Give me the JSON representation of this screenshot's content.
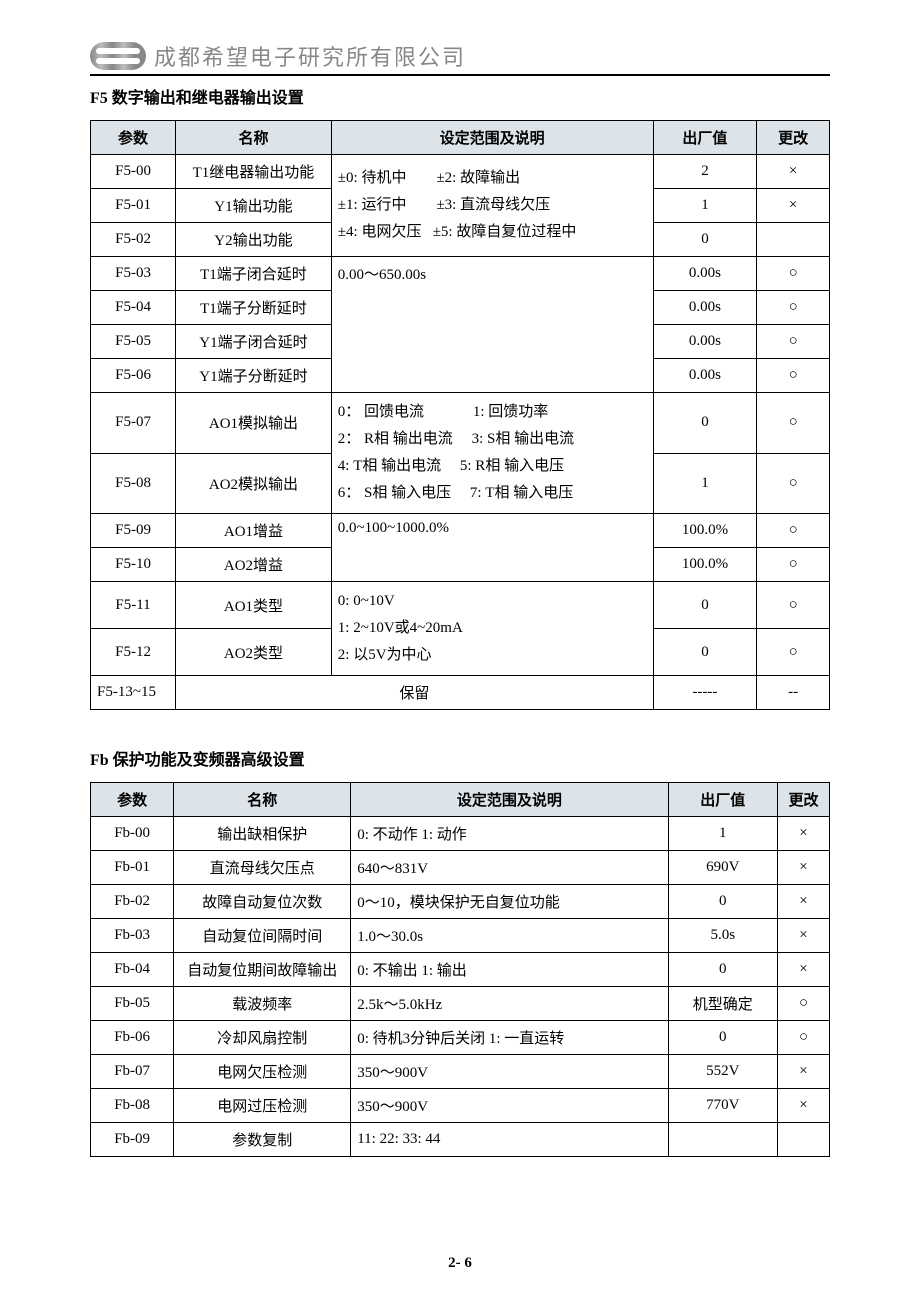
{
  "header": {
    "company": "成都希望电子研究所有限公司"
  },
  "sectionF5": {
    "title": "F5  数字输出和继电器输出设置",
    "headers": {
      "param": "参数",
      "name": "名称",
      "range": "设定范围及说明",
      "default": "出厂值",
      "change": "更改"
    },
    "spanDesc1_line1a": "±0: 待机中",
    "spanDesc1_line1b": "±2: 故障输出",
    "spanDesc1_line2a": "±1: 运行中",
    "spanDesc1_line2b": "±3: 直流母线欠压",
    "spanDesc1_line3a": "±4: 电网欠压",
    "spanDesc1_line3b": "±5: 故障自复位过程中",
    "spanDesc2": "0.00～650.00s",
    "spanDesc3_line1a": "0：   回馈电流",
    "spanDesc3_line1b": "1:   回馈功率",
    "spanDesc3_line2a": "2：   R相  输出电流",
    "spanDesc3_line2b": "3:  S相  输出电流",
    "spanDesc3_line3a": "4:     T相  输出电流",
    "spanDesc3_line3b": "5:  R相  输入电压",
    "spanDesc3_line4a": "6：   S相  输入电压",
    "spanDesc3_line4b": "7: T相  输入电压",
    "spanDesc4": "0.0~100~1000.0%",
    "spanDesc5_line1": "0:   0~10V",
    "spanDesc5_line2": "1:   2~10V或4~20mA",
    "spanDesc5_line3": "2:  以5V为中心",
    "rows": [
      {
        "param": "F5-00",
        "name": "T1继电器输出功能",
        "default": "2",
        "change": "×"
      },
      {
        "param": "F5-01",
        "name": "Y1输出功能",
        "default": "1",
        "change": "×"
      },
      {
        "param": "F5-02",
        "name": "Y2输出功能",
        "default": "0",
        "change": ""
      },
      {
        "param": "F5-03",
        "name": "T1端子闭合延时",
        "default": "0.00s",
        "change": "○"
      },
      {
        "param": "F5-04",
        "name": "T1端子分断延时",
        "default": "0.00s",
        "change": "○"
      },
      {
        "param": "F5-05",
        "name": "Y1端子闭合延时",
        "default": "0.00s",
        "change": "○"
      },
      {
        "param": "F5-06",
        "name": "Y1端子分断延时",
        "default": "0.00s",
        "change": "○"
      },
      {
        "param": "F5-07",
        "name": "AO1模拟输出",
        "default": "0",
        "change": "○"
      },
      {
        "param": "F5-08",
        "name": "AO2模拟输出",
        "default": "1",
        "change": "○"
      },
      {
        "param": "F5-09",
        "name": "AO1增益",
        "default": "100.0%",
        "change": "○"
      },
      {
        "param": "F5-10",
        "name": "AO2增益",
        "default": "100.0%",
        "change": "○"
      },
      {
        "param": "F5-11",
        "name": "AO1类型",
        "default": "0",
        "change": "○"
      },
      {
        "param": "F5-12",
        "name": "AO2类型",
        "default": "0",
        "change": "○"
      }
    ],
    "reservedParam": "F5-13~15",
    "reservedLabel": "保留",
    "reservedDefault": "-----",
    "reservedChange": "--"
  },
  "sectionFb": {
    "title": "Fb  保护功能及变频器高级设置",
    "headers": {
      "param": "参数",
      "name": "名称",
      "range": "设定范围及说明",
      "default": "出厂值",
      "change": "更改"
    },
    "rows": [
      {
        "param": "Fb-00",
        "name": "输出缺相保护",
        "range": "0:  不动作  1:  动作",
        "default": "1",
        "change": "×"
      },
      {
        "param": "Fb-01",
        "name": "直流母线欠压点",
        "range": "640～831V",
        "default": "690V",
        "change": "×"
      },
      {
        "param": "Fb-02",
        "name": "故障自动复位次数",
        "range": "0～10，模块保护无自复位功能",
        "default": "0",
        "change": "×"
      },
      {
        "param": "Fb-03",
        "name": "自动复位间隔时间",
        "range": "1.0～30.0s",
        "default": "5.0s",
        "change": "×"
      },
      {
        "param": "Fb-04",
        "name": "自动复位期间故障输出",
        "range": "0:  不输出                1:  输出",
        "default": "0",
        "change": "×"
      },
      {
        "param": "Fb-05",
        "name": "载波频率",
        "range": "2.5k～5.0kHz",
        "default": "机型确定",
        "change": "○"
      },
      {
        "param": "Fb-06",
        "name": "冷却风扇控制",
        "range": "0:  待机3分钟后关闭      1:  一直运转",
        "default": "0",
        "change": "○"
      },
      {
        "param": "Fb-07",
        "name": "电网欠压检测",
        "range": "350～900V",
        "default": "552V",
        "change": "×"
      },
      {
        "param": "Fb-08",
        "name": "电网过压检测",
        "range": "350～900V",
        "default": "770V",
        "change": "×"
      },
      {
        "param": "Fb-09",
        "name": "参数复制",
        "range": "11:   22:  33:  44",
        "default": "",
        "change": ""
      }
    ]
  },
  "pageNumber": "2- 6",
  "colors": {
    "headerBg": "#dde4e9",
    "border": "#000000",
    "companyText": "#888888"
  },
  "layout": {
    "pageWidth": 920,
    "pageHeight": 1300,
    "tableF5ColWidths": [
      82,
      150,
      310,
      100,
      70
    ],
    "tableFbColWidths": [
      80,
      170,
      305,
      105,
      50
    ]
  }
}
